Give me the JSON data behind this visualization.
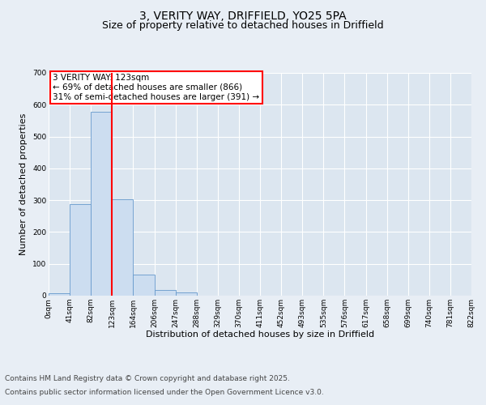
{
  "title_line1": "3, VERITY WAY, DRIFFIELD, YO25 5PA",
  "title_line2": "Size of property relative to detached houses in Driffield",
  "xlabel": "Distribution of detached houses by size in Driffield",
  "ylabel": "Number of detached properties",
  "bin_labels": [
    "0sqm",
    "41sqm",
    "82sqm",
    "123sqm",
    "164sqm",
    "206sqm",
    "247sqm",
    "288sqm",
    "329sqm",
    "370sqm",
    "411sqm",
    "452sqm",
    "493sqm",
    "535sqm",
    "576sqm",
    "617sqm",
    "658sqm",
    "699sqm",
    "740sqm",
    "781sqm",
    "822sqm"
  ],
  "bar_values": [
    8,
    287,
    578,
    302,
    65,
    18,
    10,
    0,
    0,
    0,
    0,
    0,
    0,
    0,
    0,
    0,
    0,
    0,
    0,
    0
  ],
  "bar_color": "#ccddf0",
  "bar_edge_color": "#6699cc",
  "vline_x": 3,
  "vline_color": "red",
  "annotation_text": "3 VERITY WAY: 123sqm\n← 69% of detached houses are smaller (866)\n31% of semi-detached houses are larger (391) →",
  "annotation_box_color": "white",
  "annotation_box_edge_color": "red",
  "ylim": [
    0,
    700
  ],
  "yticks": [
    0,
    100,
    200,
    300,
    400,
    500,
    600,
    700
  ],
  "background_color": "#e8eef5",
  "plot_bg_color": "#dce6f0",
  "grid_color": "white",
  "footer_line1": "Contains HM Land Registry data © Crown copyright and database right 2025.",
  "footer_line2": "Contains public sector information licensed under the Open Government Licence v3.0.",
  "title_fontsize": 10,
  "subtitle_fontsize": 9,
  "axis_label_fontsize": 8,
  "tick_fontsize": 6.5,
  "annotation_fontsize": 7.5,
  "footer_fontsize": 6.5
}
